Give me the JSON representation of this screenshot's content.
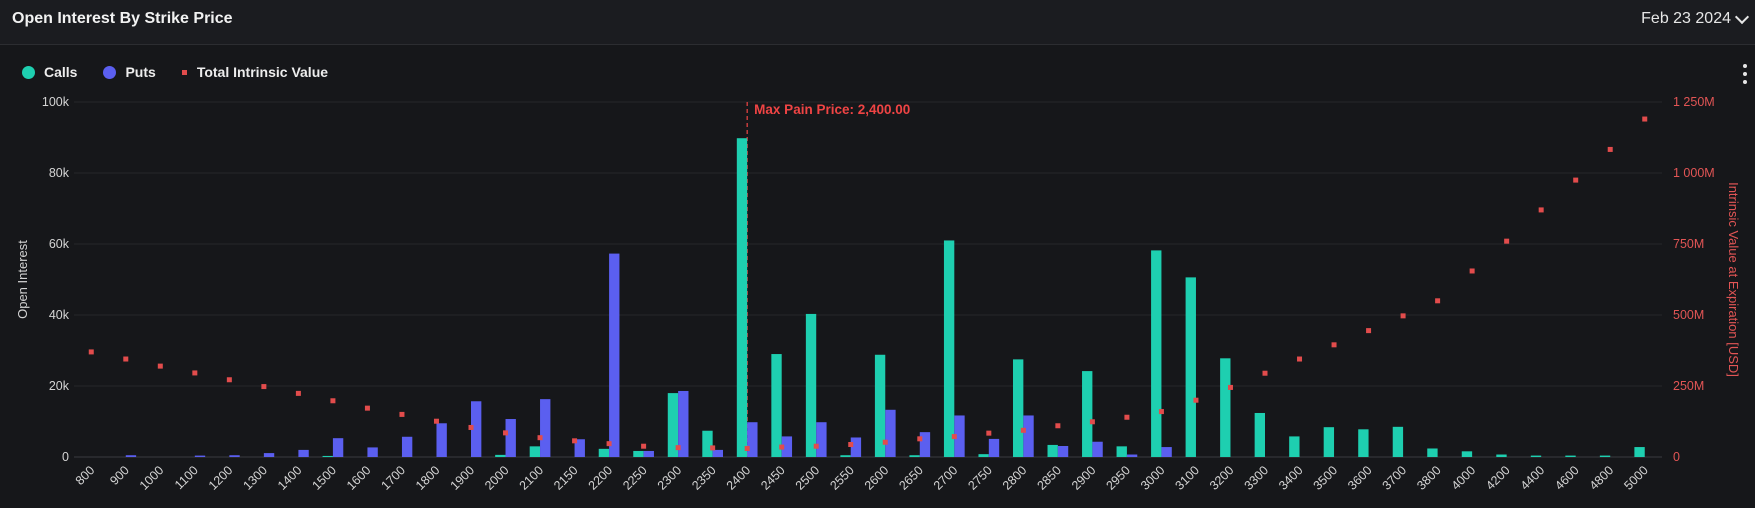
{
  "header": {
    "title": "Open Interest By Strike Price",
    "date": "Feb 23 2024"
  },
  "legend": [
    {
      "label": "Calls",
      "color": "#1ecfb0",
      "shape": "circle"
    },
    {
      "label": "Puts",
      "color": "#5b5ff0",
      "shape": "circle"
    },
    {
      "label": "Total Intrinsic Value",
      "color": "#e24c4c",
      "shape": "square"
    }
  ],
  "menu_icon": "kebab-menu-icon",
  "chart_data": {
    "type": "bar",
    "ylabel": "Open Interest",
    "y2label": "Intrinsic Value at Expiration [USD]",
    "ylim": [
      0,
      100000
    ],
    "y2lim": [
      0,
      1250000000
    ],
    "yticks": [
      "0",
      "20k",
      "40k",
      "60k",
      "80k",
      "100k"
    ],
    "y2ticks": [
      "0",
      "250M",
      "500M",
      "750M",
      "1 000M",
      "1 250M"
    ],
    "annotation": {
      "label": "Max Pain Price: 2,400.00",
      "category": "2400"
    },
    "grid": true,
    "legend_position": "top-left",
    "categories": [
      "800",
      "900",
      "1000",
      "1100",
      "1200",
      "1300",
      "1400",
      "1500",
      "1600",
      "1700",
      "1800",
      "1900",
      "2000",
      "2100",
      "2150",
      "2200",
      "2250",
      "2300",
      "2350",
      "2400",
      "2450",
      "2500",
      "2550",
      "2600",
      "2650",
      "2700",
      "2750",
      "2800",
      "2850",
      "2900",
      "2950",
      "3000",
      "3100",
      "3200",
      "3300",
      "3400",
      "3500",
      "3600",
      "3700",
      "3800",
      "4000",
      "4200",
      "4400",
      "4600",
      "4800",
      "5000"
    ],
    "series": [
      {
        "name": "Calls",
        "color": "#1ecfb0",
        "values": [
          0,
          0,
          0,
          0,
          0,
          0,
          0,
          300,
          0,
          0,
          0,
          0,
          600,
          3000,
          0,
          2300,
          1700,
          18000,
          7400,
          89800,
          29000,
          40300,
          500,
          28800,
          500,
          61000,
          800,
          27500,
          3400,
          24200,
          3000,
          58200,
          50600,
          27800,
          12400,
          5800,
          8400,
          7800,
          8500,
          2400,
          1600,
          700,
          400,
          400,
          400,
          2800
        ]
      },
      {
        "name": "Puts",
        "color": "#5b5ff0",
        "values": [
          0,
          500,
          0,
          400,
          500,
          1100,
          2000,
          5300,
          2700,
          5700,
          9500,
          15700,
          10700,
          16300,
          5000,
          57300,
          1700,
          18600,
          2000,
          9800,
          5800,
          9800,
          5500,
          13300,
          7000,
          11700,
          5100,
          11700,
          3100,
          4300,
          700,
          2800,
          0,
          0,
          0,
          0,
          0,
          0,
          0,
          0,
          0,
          0,
          0,
          0,
          0,
          0
        ]
      },
      {
        "name": "Total Intrinsic Value",
        "color": "#e24c4c",
        "values": [
          370000000,
          345000000,
          320000000,
          296000000,
          272000000,
          248000000,
          224000000,
          198000000,
          172000000,
          150000000,
          126000000,
          104000000,
          85000000,
          68000000,
          57000000,
          47000000,
          38000000,
          33000000,
          32000000,
          30000000,
          35000000,
          38000000,
          44000000,
          52000000,
          64000000,
          72000000,
          84000000,
          94000000,
          110000000,
          124000000,
          140000000,
          160000000,
          200000000,
          245000000,
          295000000,
          345000000,
          395000000,
          445000000,
          497000000,
          550000000,
          655000000,
          760000000,
          870000000,
          975000000,
          1083000000,
          1190000000
        ]
      }
    ]
  }
}
